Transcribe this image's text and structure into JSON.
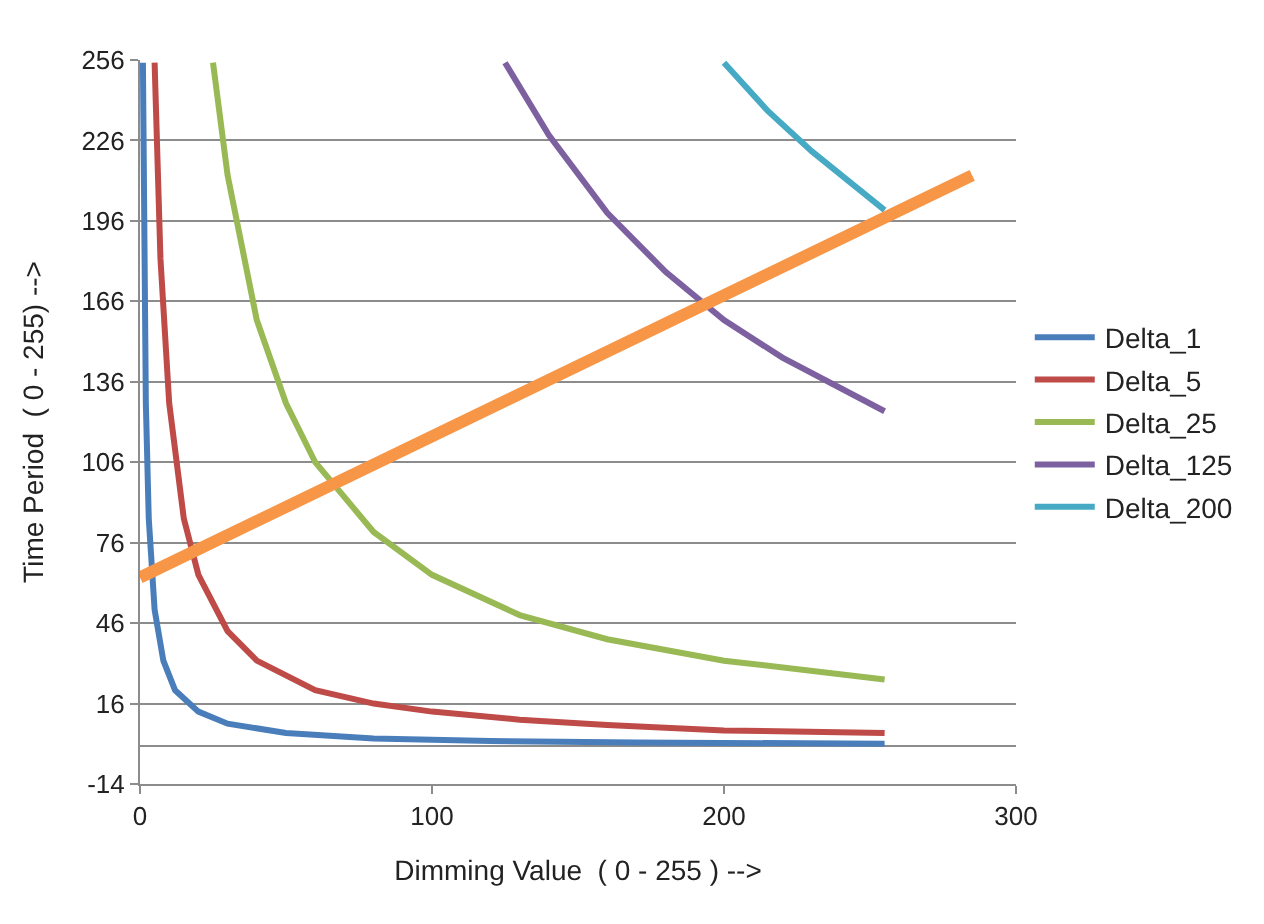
{
  "chart_data": {
    "type": "line",
    "xlabel": "Dimming Value  ( 0 - 255 ) -->",
    "ylabel": "Time Period  ( 0 - 255) -->",
    "xlim": [
      0,
      300
    ],
    "xticks": [
      0,
      100,
      200,
      300
    ],
    "ylim": [
      -14,
      256
    ],
    "yticks": [
      -14,
      16,
      46,
      76,
      106,
      136,
      166,
      196,
      226,
      256
    ],
    "grid": "y",
    "legend": "right",
    "marker": "none",
    "line_style": "solid",
    "series": [
      {
        "name": "Delta_1",
        "color": "#4a7ebb",
        "x": [
          1,
          2,
          3,
          5,
          8,
          12,
          20,
          30,
          50,
          80,
          120,
          170,
          255
        ],
        "values": [
          255,
          128,
          85,
          51,
          32,
          21,
          13,
          8.5,
          5,
          3,
          2,
          1.5,
          1
        ]
      },
      {
        "name": "Delta_5",
        "color": "#be4b48",
        "x": [
          5,
          7,
          10,
          15,
          20,
          30,
          40,
          60,
          80,
          100,
          130,
          160,
          200,
          255
        ],
        "values": [
          255,
          182,
          128,
          85,
          64,
          43,
          32,
          21,
          16,
          13,
          10,
          8,
          6,
          5
        ]
      },
      {
        "name": "Delta_25",
        "color": "#98b954",
        "x": [
          25,
          30,
          40,
          50,
          60,
          80,
          100,
          130,
          160,
          200,
          255
        ],
        "values": [
          255,
          213,
          159,
          128,
          106,
          80,
          64,
          49,
          40,
          32,
          25
        ]
      },
      {
        "name": "Delta_125",
        "color": "#7d60a0",
        "x": [
          125,
          140,
          160,
          180,
          200,
          220,
          255
        ],
        "values": [
          255,
          228,
          199,
          177,
          159,
          145,
          125
        ]
      },
      {
        "name": "Delta_200",
        "color": "#46aac5",
        "x": [
          200,
          215,
          230,
          255
        ],
        "values": [
          255,
          237,
          222,
          200
        ]
      },
      {
        "color": "#f79646",
        "x": [
          0,
          285
        ],
        "values": [
          63,
          213
        ]
      }
    ]
  }
}
